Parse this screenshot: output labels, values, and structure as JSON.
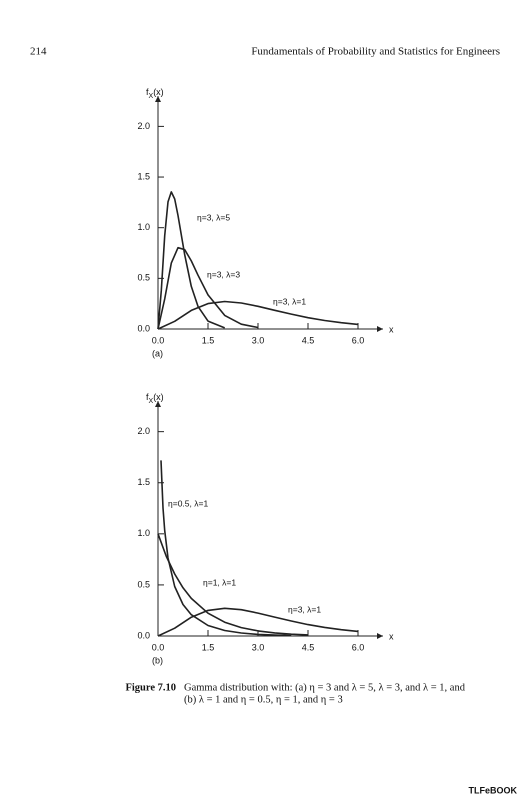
{
  "header": {
    "page_number": "214",
    "title": "Fundamentals of Probability and Statistics for Engineers"
  },
  "chart_data": [
    {
      "type": "line",
      "panel_label": "(a)",
      "ylabel": [
        "f",
        "X",
        "(x)"
      ],
      "xlabel": "x",
      "xlim": [
        0,
        6.75
      ],
      "ylim": [
        0,
        2.3
      ],
      "xticks": [
        {
          "value": 0,
          "label": "0.0"
        },
        {
          "value": 1.5,
          "label": "1.5"
        },
        {
          "value": 3,
          "label": "3.0"
        },
        {
          "value": 4.5,
          "label": "4.5"
        },
        {
          "value": 6,
          "label": "6.0"
        }
      ],
      "yticks": [
        {
          "value": 0,
          "label": "0.0"
        },
        {
          "value": 0.5,
          "label": "0.5"
        },
        {
          "value": 1,
          "label": "1.0"
        },
        {
          "value": 1.5,
          "label": "1.5"
        },
        {
          "value": 2,
          "label": "2.0"
        }
      ],
      "series": [
        {
          "name": "η=3, λ=5",
          "color": "#222222",
          "x": [
            0,
            0.1,
            0.2,
            0.3,
            0.4,
            0.5,
            0.6,
            0.8,
            1.0,
            1.2,
            1.5,
            2.0
          ],
          "values": [
            0,
            0.379,
            0.92,
            1.255,
            1.353,
            1.283,
            1.12,
            0.733,
            0.421,
            0.223,
            0.078,
            0.011
          ]
        },
        {
          "name": "η=3, λ=3",
          "color": "#222222",
          "x": [
            0,
            0.2,
            0.4,
            0.6,
            0.8,
            1.0,
            1.2,
            1.5,
            2.0,
            2.5,
            3.0
          ],
          "values": [
            0,
            0.296,
            0.651,
            0.803,
            0.784,
            0.672,
            0.531,
            0.337,
            0.134,
            0.047,
            0.015
          ]
        },
        {
          "name": "η=3, λ=1",
          "color": "#222222",
          "x": [
            0,
            0.5,
            1,
            1.5,
            2,
            2.5,
            3,
            3.5,
            4,
            4.5,
            5,
            5.5,
            6
          ],
          "values": [
            0,
            0.076,
            0.184,
            0.251,
            0.271,
            0.257,
            0.224,
            0.185,
            0.147,
            0.112,
            0.084,
            0.062,
            0.045
          ]
        }
      ]
    },
    {
      "type": "line",
      "panel_label": "(b)",
      "ylabel": [
        "f",
        "X",
        "(x)"
      ],
      "xlabel": "x",
      "xlim": [
        0,
        6.75
      ],
      "ylim": [
        0,
        2.3
      ],
      "xticks": [
        {
          "value": 0,
          "label": "0.0"
        },
        {
          "value": 1.5,
          "label": "1.5"
        },
        {
          "value": 3,
          "label": "3.0"
        },
        {
          "value": 4.5,
          "label": "4.5"
        },
        {
          "value": 6,
          "label": "6.0"
        }
      ],
      "yticks": [
        {
          "value": 0,
          "label": "0.0"
        },
        {
          "value": 0.5,
          "label": "0.5"
        },
        {
          "value": 1,
          "label": "1.0"
        },
        {
          "value": 1.5,
          "label": "1.5"
        },
        {
          "value": 2,
          "label": "2.0"
        }
      ],
      "series": [
        {
          "name": "η=0.5, λ=1",
          "color": "#222222",
          "x": [
            0.09,
            0.15,
            0.2,
            0.3,
            0.5,
            0.75,
            1,
            1.5,
            2,
            2.5,
            3,
            3.5,
            4
          ],
          "values": [
            1.719,
            1.254,
            1.033,
            0.763,
            0.484,
            0.308,
            0.208,
            0.103,
            0.054,
            0.029,
            0.016,
            0.009,
            0.005
          ]
        },
        {
          "name": "η=1, λ=1",
          "color": "#222222",
          "x": [
            0,
            0.25,
            0.5,
            0.75,
            1,
            1.5,
            2,
            2.5,
            3,
            3.5,
            4,
            4.5
          ],
          "values": [
            1,
            0.779,
            0.607,
            0.472,
            0.368,
            0.223,
            0.135,
            0.082,
            0.05,
            0.03,
            0.018,
            0.011
          ]
        },
        {
          "name": "η=3, λ=1",
          "color": "#222222",
          "x": [
            0,
            0.5,
            1,
            1.5,
            2,
            2.5,
            3,
            3.5,
            4,
            4.5,
            5,
            5.5,
            6
          ],
          "values": [
            0,
            0.076,
            0.184,
            0.251,
            0.271,
            0.257,
            0.224,
            0.185,
            0.147,
            0.112,
            0.084,
            0.062,
            0.045
          ]
        }
      ]
    }
  ],
  "caption": {
    "label": "Figure 7.10",
    "lines": [
      "Gamma distribution with: (a) η = 3 and λ = 5, λ = 3, and λ = 1, and",
      "(b) λ = 1 and η = 0.5, η = 1, and η = 3"
    ]
  },
  "footer": "TLFeBOOK"
}
